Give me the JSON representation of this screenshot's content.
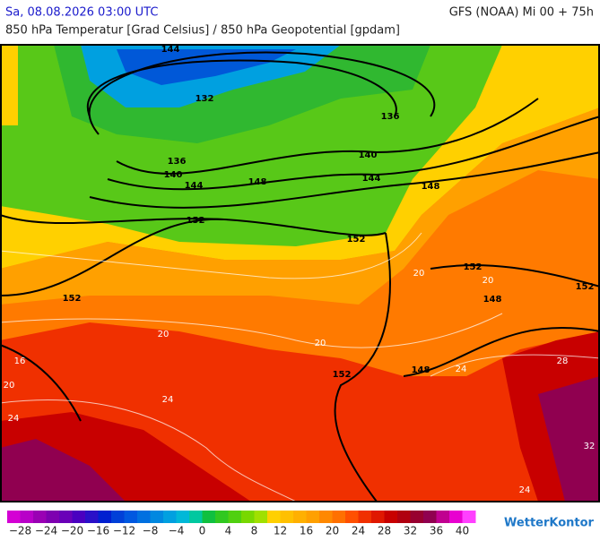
{
  "header": {
    "datetime": "Sa, 08.08.2026 03:00 UTC",
    "model": "GFS (NOAA) Mi 00 + 75h",
    "title": "850 hPa Temperatur [Grad Celsius] / 850 hPa Geopotential [gpdam]"
  },
  "map": {
    "geopotential_labels": [
      "144",
      "132",
      "136",
      "136",
      "140",
      "140",
      "144",
      "148",
      "144",
      "148",
      "152",
      "152",
      "152",
      "152",
      "148",
      "152",
      "152",
      "148"
    ],
    "temperature_labels": [
      "20",
      "20",
      "20",
      "24",
      "24",
      "24",
      "28",
      "32",
      "20",
      "16",
      "20",
      "24"
    ]
  },
  "legend": {
    "labels": [
      "−28",
      "−24",
      "−20",
      "−16",
      "−12",
      "−8",
      "−4",
      "0",
      "4",
      "8",
      "12",
      "16",
      "20",
      "24",
      "28",
      "32",
      "36",
      "40"
    ],
    "colors": [
      "#d400d4",
      "#b800c8",
      "#9a00b4",
      "#7e00b0",
      "#6a00b8",
      "#4a00c0",
      "#2a10c8",
      "#0020d0",
      "#0040d8",
      "#0058e0",
      "#0070e0",
      "#0088e0",
      "#00a0e0",
      "#00b8d8",
      "#00c8a0",
      "#10c040",
      "#30c820",
      "#50d010",
      "#78d800",
      "#a0e000",
      "#ffd000",
      "#ffc000",
      "#ffb000",
      "#ffa000",
      "#ff8800",
      "#ff7000",
      "#ff5000",
      "#f03000",
      "#e01800",
      "#c80000",
      "#b00010",
      "#980030",
      "#900050",
      "#c00090",
      "#e800d0",
      "#ff40ff"
    ]
  },
  "footer": {
    "logo": "WetterKontor"
  }
}
